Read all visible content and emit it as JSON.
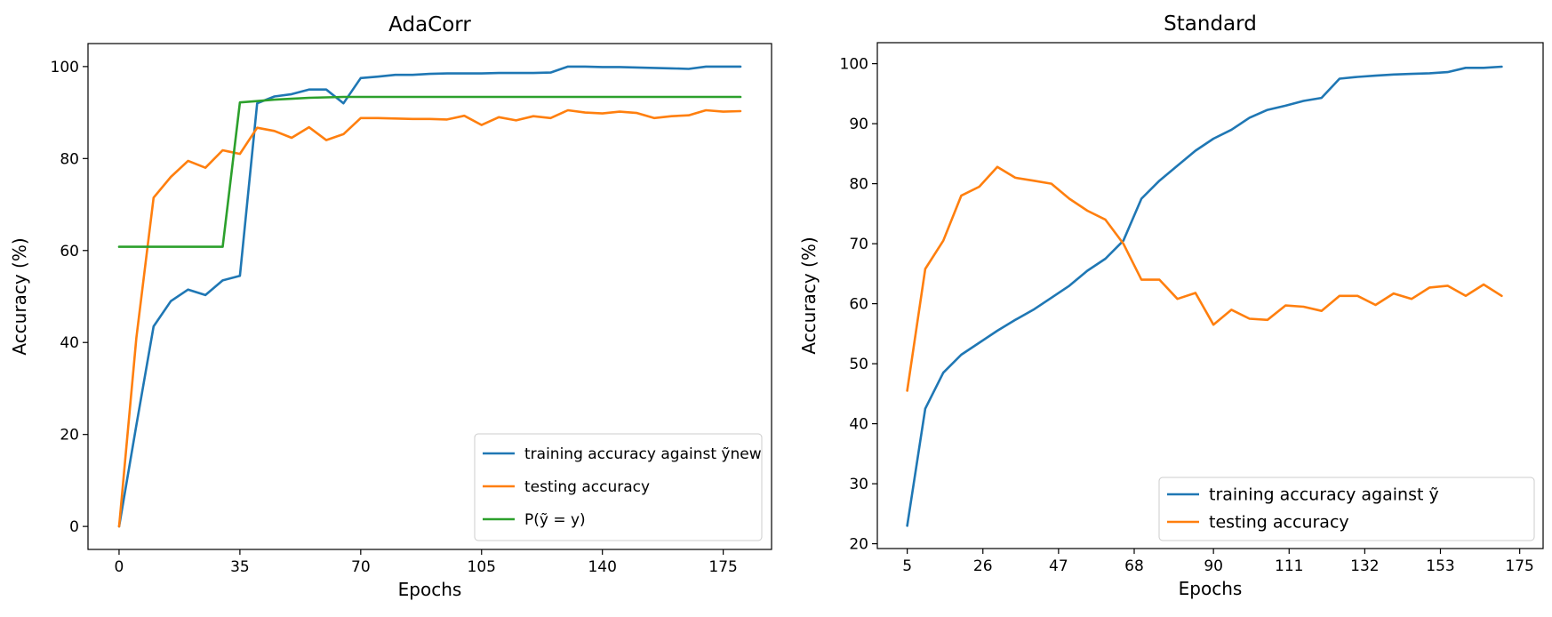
{
  "chart_data": [
    {
      "type": "line",
      "title": "AdaCorr",
      "xlabel": "Epochs",
      "ylabel": "Accuracy (%)",
      "xlim": [
        -9,
        189
      ],
      "ylim": [
        -5,
        105
      ],
      "xticks": [
        0,
        35,
        70,
        105,
        140,
        175
      ],
      "yticks": [
        0,
        20,
        40,
        60,
        80,
        100
      ],
      "grid": false,
      "legend_position": "lower-right",
      "series": [
        {
          "name": "training accuracy against ỹnew",
          "color": "#1f77b4",
          "x": [
            0,
            5,
            10,
            15,
            20,
            25,
            30,
            35,
            40,
            45,
            50,
            55,
            60,
            65,
            70,
            75,
            80,
            85,
            90,
            95,
            100,
            105,
            110,
            115,
            120,
            125,
            130,
            135,
            140,
            145,
            150,
            155,
            160,
            165,
            170,
            175,
            180
          ],
          "y": [
            0,
            22,
            43.5,
            49,
            51.5,
            50.3,
            53.5,
            54.5,
            92,
            93.5,
            94,
            95,
            95,
            92,
            97.5,
            97.8,
            98.2,
            98.2,
            98.4,
            98.5,
            98.5,
            98.5,
            98.6,
            98.6,
            98.6,
            98.7,
            100,
            100,
            99.9,
            99.9,
            99.8,
            99.7,
            99.6,
            99.5,
            100,
            100,
            100
          ]
        },
        {
          "name": "testing accuracy",
          "color": "#ff7f0e",
          "x": [
            0,
            5,
            10,
            15,
            20,
            25,
            30,
            35,
            40,
            45,
            50,
            55,
            60,
            65,
            70,
            75,
            80,
            85,
            90,
            95,
            100,
            105,
            110,
            115,
            120,
            125,
            130,
            135,
            140,
            145,
            150,
            155,
            160,
            165,
            170,
            175,
            180
          ],
          "y": [
            0,
            41,
            71.5,
            76,
            79.5,
            78,
            81.8,
            81,
            86.7,
            86,
            84.5,
            86.8,
            84,
            85.3,
            88.8,
            88.8,
            88.7,
            88.6,
            88.6,
            88.5,
            89.3,
            87.3,
            89,
            88.3,
            89.2,
            88.8,
            90.5,
            90,
            89.8,
            90.2,
            89.9,
            88.8,
            89.2,
            89.4,
            90.5,
            90.2,
            90.3
          ]
        },
        {
          "name": "P(ỹ = y)",
          "color": "#2ca02c",
          "x": [
            0,
            5,
            10,
            15,
            20,
            25,
            30,
            35,
            40,
            45,
            50,
            55,
            60,
            65,
            70,
            75,
            80,
            85,
            90,
            95,
            100,
            105,
            110,
            115,
            120,
            125,
            130,
            135,
            140,
            145,
            150,
            155,
            160,
            165,
            170,
            175,
            180
          ],
          "y": [
            60.8,
            60.8,
            60.8,
            60.8,
            60.8,
            60.8,
            60.8,
            92.2,
            92.5,
            92.8,
            93,
            93.2,
            93.3,
            93.4,
            93.4,
            93.4,
            93.4,
            93.4,
            93.4,
            93.4,
            93.4,
            93.4,
            93.4,
            93.4,
            93.4,
            93.4,
            93.4,
            93.4,
            93.4,
            93.4,
            93.4,
            93.4,
            93.4,
            93.4,
            93.4,
            93.4,
            93.4
          ]
        }
      ]
    },
    {
      "type": "line",
      "title": "Standard",
      "xlabel": "Epochs",
      "ylabel": "Accuracy (%)",
      "xlim": [
        -3.3,
        181.5
      ],
      "ylim": [
        19.2,
        103.5
      ],
      "xticks": [
        5,
        26,
        47,
        68,
        90,
        111,
        132,
        153,
        175
      ],
      "yticks": [
        20,
        30,
        40,
        50,
        60,
        70,
        80,
        90,
        100
      ],
      "grid": false,
      "legend_position": "lower-right",
      "series": [
        {
          "name": "training accuracy against ỹ",
          "color": "#1f77b4",
          "x": [
            5,
            10,
            15,
            20,
            25,
            30,
            35,
            40,
            45,
            50,
            55,
            60,
            65,
            70,
            75,
            80,
            85,
            90,
            95,
            100,
            105,
            110,
            115,
            120,
            125,
            130,
            135,
            140,
            145,
            150,
            155,
            160,
            165,
            170
          ],
          "y": [
            23,
            42.5,
            48.5,
            51.5,
            53.5,
            55.5,
            57.3,
            59,
            61,
            63,
            65.5,
            67.5,
            70.5,
            77.5,
            80.5,
            83,
            85.5,
            87.5,
            89,
            91,
            92.3,
            93,
            93.8,
            94.3,
            97.5,
            97.8,
            98,
            98.2,
            98.3,
            98.4,
            98.6,
            99.3,
            99.3,
            99.5
          ]
        },
        {
          "name": "testing accuracy",
          "color": "#ff7f0e",
          "x": [
            5,
            10,
            15,
            20,
            25,
            30,
            35,
            40,
            45,
            50,
            55,
            60,
            65,
            70,
            75,
            80,
            85,
            90,
            95,
            100,
            105,
            110,
            115,
            120,
            125,
            130,
            135,
            140,
            145,
            150,
            155,
            160,
            165,
            170
          ],
          "y": [
            45.5,
            65.8,
            70.5,
            78,
            79.5,
            82.8,
            81,
            80.5,
            80,
            77.5,
            75.5,
            74,
            70,
            64,
            64,
            60.8,
            61.8,
            56.5,
            59,
            57.5,
            57.3,
            59.7,
            59.5,
            58.8,
            61.3,
            61.3,
            59.8,
            61.7,
            60.8,
            62.7,
            63,
            61.3,
            63.2,
            61.3
          ]
        }
      ]
    }
  ]
}
